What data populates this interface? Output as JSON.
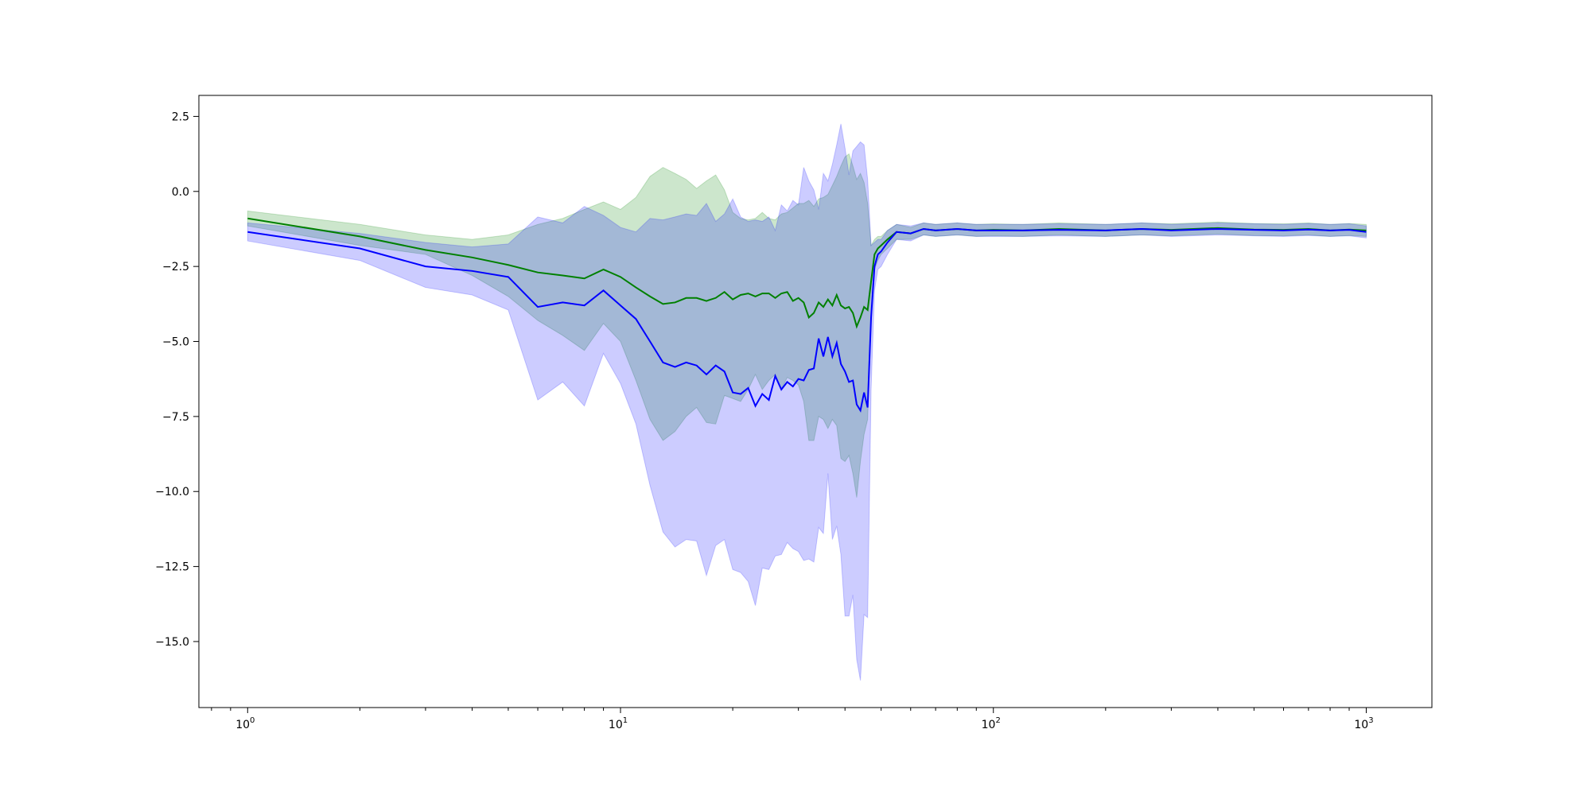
{
  "chart_data": {
    "type": "line",
    "title": "",
    "xlabel": "",
    "ylabel": "",
    "xscale": "log",
    "xlim": [
      0.74,
      1500
    ],
    "ylim": [
      -17.2,
      3.2
    ],
    "grid": false,
    "legend": "none",
    "xticks": [
      {
        "value": 1,
        "label": "10",
        "exp": "0"
      },
      {
        "value": 10,
        "label": "10",
        "exp": "1"
      },
      {
        "value": 100,
        "label": "10",
        "exp": "2"
      },
      {
        "value": 1000,
        "label": "10",
        "exp": "3"
      }
    ],
    "yticks": [
      {
        "value": 2.5,
        "label": "2.5"
      },
      {
        "value": 0,
        "label": "0.0"
      },
      {
        "value": -2.5,
        "label": "−2.5"
      },
      {
        "value": -5,
        "label": "−5.0"
      },
      {
        "value": -7.5,
        "label": "−7.5"
      },
      {
        "value": -10,
        "label": "−10.0"
      },
      {
        "value": -12.5,
        "label": "−12.5"
      },
      {
        "value": -15,
        "label": "−15.0"
      }
    ],
    "series": [
      {
        "color": "#008000",
        "band_color": "#008000",
        "band_opacity": 0.2,
        "x": [
          1,
          2,
          3,
          4,
          5,
          6,
          7,
          8,
          9,
          10,
          11,
          12,
          13,
          14,
          15,
          16,
          17,
          18,
          19,
          20,
          21,
          22,
          23,
          24,
          25,
          26,
          27,
          28,
          29,
          30,
          31,
          32,
          33,
          34,
          35,
          36,
          37,
          38,
          39,
          40,
          41,
          42,
          43,
          44,
          45,
          46,
          47,
          48,
          49,
          50,
          52,
          55,
          60,
          65,
          70,
          80,
          90,
          100,
          120,
          150,
          200,
          250,
          300,
          400,
          500,
          600,
          700,
          800,
          900,
          1000
        ],
        "y": [
          -0.9,
          -1.5,
          -1.95,
          -2.2,
          -2.45,
          -2.7,
          -2.8,
          -2.9,
          -2.6,
          -2.85,
          -3.2,
          -3.5,
          -3.75,
          -3.7,
          -3.55,
          -3.55,
          -3.65,
          -3.55,
          -3.35,
          -3.6,
          -3.45,
          -3.4,
          -3.5,
          -3.4,
          -3.4,
          -3.55,
          -3.4,
          -3.35,
          -3.65,
          -3.55,
          -3.7,
          -4.2,
          -4.05,
          -3.7,
          -3.85,
          -3.6,
          -3.8,
          -3.45,
          -3.8,
          -3.9,
          -3.85,
          -4.05,
          -4.5,
          -4.2,
          -3.85,
          -3.95,
          -3.0,
          -2.1,
          -1.9,
          -1.8,
          -1.6,
          -1.35,
          -1.4,
          -1.25,
          -1.3,
          -1.25,
          -1.3,
          -1.28,
          -1.3,
          -1.25,
          -1.3,
          -1.25,
          -1.28,
          -1.22,
          -1.27,
          -1.28,
          -1.25,
          -1.3,
          -1.27,
          -1.3
        ],
        "upper": [
          -0.65,
          -1.1,
          -1.45,
          -1.6,
          -1.45,
          -1.1,
          -0.9,
          -0.6,
          -0.35,
          -0.6,
          -0.2,
          0.5,
          0.8,
          0.6,
          0.4,
          0.1,
          0.35,
          0.55,
          0.05,
          -0.7,
          -0.9,
          -0.95,
          -0.9,
          -0.7,
          -0.9,
          -0.95,
          -0.75,
          -0.7,
          -0.55,
          -0.4,
          -0.4,
          -0.3,
          -0.5,
          -0.25,
          -0.2,
          -0.1,
          0.2,
          0.5,
          0.85,
          1.15,
          1.25,
          0.85,
          0.4,
          0.6,
          0.3,
          -0.4,
          -1.8,
          -1.6,
          -1.5,
          -1.5,
          -1.3,
          -1.1,
          -1.2,
          -1.05,
          -1.1,
          -1.05,
          -1.1,
          -1.08,
          -1.1,
          -1.05,
          -1.1,
          -1.05,
          -1.08,
          -1.02,
          -1.07,
          -1.08,
          -1.05,
          -1.1,
          -1.07,
          -1.1
        ],
        "lower": [
          -1.15,
          -1.8,
          -2.1,
          -2.8,
          -3.5,
          -4.3,
          -4.8,
          -5.3,
          -4.4,
          -5.0,
          -6.3,
          -7.6,
          -8.3,
          -8.0,
          -7.5,
          -7.2,
          -7.7,
          -7.75,
          -6.8,
          -6.9,
          -7.0,
          -6.6,
          -6.1,
          -6.6,
          -6.3,
          -6.1,
          -6.6,
          -6.2,
          -6.3,
          -6.45,
          -7.0,
          -8.3,
          -8.3,
          -7.5,
          -7.6,
          -7.9,
          -7.6,
          -7.8,
          -8.9,
          -9.0,
          -8.8,
          -9.4,
          -10.2,
          -9.0,
          -8.1,
          -7.6,
          -4.3,
          -2.6,
          -2.3,
          -2.1,
          -1.9,
          -1.6,
          -1.6,
          -1.45,
          -1.5,
          -1.45,
          -1.5,
          -1.48,
          -1.5,
          -1.45,
          -1.5,
          -1.45,
          -1.48,
          -1.42,
          -1.47,
          -1.48,
          -1.45,
          -1.5,
          -1.47,
          -1.5
        ]
      },
      {
        "color": "#0000ff",
        "band_color": "#0000ff",
        "band_opacity": 0.2,
        "x": [
          1,
          2,
          3,
          4,
          5,
          6,
          7,
          8,
          9,
          10,
          11,
          12,
          13,
          14,
          15,
          16,
          17,
          18,
          19,
          20,
          21,
          22,
          23,
          24,
          25,
          26,
          27,
          28,
          29,
          30,
          31,
          32,
          33,
          34,
          35,
          36,
          37,
          38,
          39,
          40,
          41,
          42,
          43,
          44,
          45,
          46,
          47,
          48,
          49,
          50,
          52,
          55,
          60,
          65,
          70,
          80,
          90,
          100,
          120,
          150,
          200,
          250,
          300,
          400,
          500,
          600,
          700,
          800,
          900,
          1000
        ],
        "y": [
          -1.35,
          -1.9,
          -2.5,
          -2.65,
          -2.85,
          -3.85,
          -3.7,
          -3.8,
          -3.3,
          -3.8,
          -4.25,
          -5.0,
          -5.7,
          -5.85,
          -5.7,
          -5.8,
          -6.1,
          -5.8,
          -6.0,
          -6.7,
          -6.75,
          -6.55,
          -7.15,
          -6.75,
          -6.95,
          -6.15,
          -6.6,
          -6.35,
          -6.5,
          -6.25,
          -6.3,
          -5.95,
          -5.9,
          -4.9,
          -5.5,
          -4.85,
          -5.5,
          -5.05,
          -5.75,
          -6.0,
          -6.35,
          -6.3,
          -7.1,
          -7.3,
          -6.7,
          -7.2,
          -4.2,
          -2.5,
          -2.1,
          -2.0,
          -1.7,
          -1.35,
          -1.4,
          -1.25,
          -1.3,
          -1.25,
          -1.3,
          -1.3,
          -1.3,
          -1.28,
          -1.3,
          -1.25,
          -1.3,
          -1.25,
          -1.28,
          -1.3,
          -1.27,
          -1.3,
          -1.28,
          -1.35
        ],
        "upper": [
          -1.05,
          -1.4,
          -1.7,
          -1.85,
          -1.75,
          -0.85,
          -1.05,
          -0.5,
          -0.8,
          -1.2,
          -1.35,
          -0.9,
          -0.95,
          -0.85,
          -0.75,
          -0.8,
          -0.4,
          -1.0,
          -0.75,
          -0.25,
          -0.85,
          -1.0,
          -0.95,
          -1.0,
          -0.85,
          -1.3,
          -0.45,
          -0.65,
          -0.3,
          -0.45,
          0.8,
          0.35,
          0.05,
          -0.6,
          0.6,
          0.35,
          0.9,
          1.55,
          2.25,
          1.45,
          0.55,
          1.35,
          1.5,
          1.65,
          1.55,
          0.4,
          -1.8,
          -1.7,
          -1.6,
          -1.6,
          -1.3,
          -1.1,
          -1.15,
          -1.05,
          -1.1,
          -1.05,
          -1.1,
          -1.1,
          -1.1,
          -1.08,
          -1.1,
          -1.05,
          -1.1,
          -1.05,
          -1.08,
          -1.1,
          -1.07,
          -1.1,
          -1.08,
          -1.15
        ],
        "lower": [
          -1.65,
          -2.3,
          -3.2,
          -3.45,
          -3.95,
          -6.95,
          -6.35,
          -7.15,
          -5.4,
          -6.4,
          -7.75,
          -9.8,
          -11.35,
          -11.85,
          -11.6,
          -11.65,
          -12.8,
          -11.8,
          -11.6,
          -12.6,
          -12.7,
          -13.0,
          -13.8,
          -12.55,
          -12.6,
          -12.15,
          -12.1,
          -11.7,
          -11.9,
          -12.0,
          -12.3,
          -12.25,
          -12.35,
          -11.2,
          -11.4,
          -9.4,
          -11.6,
          -11.15,
          -12.1,
          -14.15,
          -14.15,
          -13.45,
          -15.6,
          -16.3,
          -14.1,
          -14.2,
          -6.6,
          -3.3,
          -2.6,
          -2.5,
          -2.1,
          -1.6,
          -1.65,
          -1.45,
          -1.5,
          -1.45,
          -1.5,
          -1.5,
          -1.5,
          -1.48,
          -1.5,
          -1.45,
          -1.5,
          -1.45,
          -1.48,
          -1.5,
          -1.47,
          -1.5,
          -1.48,
          -1.55
        ]
      }
    ]
  }
}
